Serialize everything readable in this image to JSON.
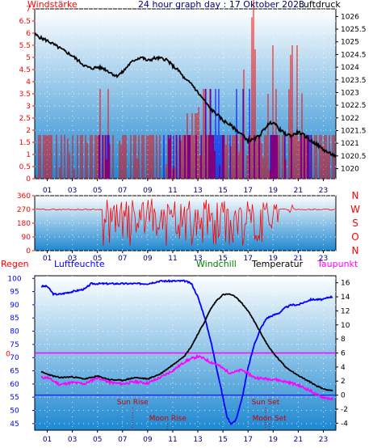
{
  "colors": {
    "background": "#ffffff",
    "plot_top": "#ffffff",
    "plot_bottom": "#1e88d0",
    "wind_speed": "#ff0000",
    "wind_gust": "#0000ff",
    "pressure": "#000000",
    "direction": "#ff0000",
    "rain_axis": "#ff0000",
    "humidity": "#0000ff",
    "temperature": "#000000",
    "windchill": "#008000",
    "dewpoint": "#ff00ff",
    "sunline": "#cc0000"
  },
  "chart_data": [
    {
      "type": "line",
      "title": "24 hour graph day : 17 Oktober 2023",
      "left_axis_label": "Windstärke",
      "right_axis_label": "Luftdruck",
      "x_ticks": [
        "01",
        "03",
        "05",
        "07",
        "09",
        "11",
        "13",
        "15",
        "17",
        "19",
        "21",
        "23"
      ],
      "left_ticks": [
        "7",
        "6.5",
        "6",
        "5.5",
        "5",
        "4.5",
        "4",
        "3.5",
        "3",
        "2.5",
        "2",
        "1.5",
        "1",
        "0.5",
        "0"
      ],
      "right_ticks": [
        "1026",
        "1025.5",
        "1025",
        "1024.5",
        "1024",
        "1023.5",
        "1023",
        "1022.5",
        "1022",
        "1021.5",
        "1021",
        "1020.5",
        "1020"
      ],
      "x_range": [
        0,
        24
      ],
      "left_range": [
        0,
        7
      ],
      "right_range": [
        1019.6,
        1026.3
      ],
      "pressure": {
        "x": [
          0,
          0.5,
          1,
          1.5,
          2,
          2.5,
          3,
          3.5,
          4,
          4.5,
          5,
          5.5,
          6,
          6.5,
          7,
          7.5,
          8,
          8.5,
          9,
          9.5,
          10,
          10.5,
          11,
          11.5,
          12,
          12.5,
          13,
          13.5,
          14,
          14.5,
          15,
          15.5,
          16,
          16.5,
          17,
          17.5,
          18,
          18.5,
          19,
          19.5,
          20,
          20.5,
          21,
          21.5,
          22,
          22.5,
          23,
          23.5,
          24
        ],
        "y": [
          1025.3,
          1025.15,
          1025.05,
          1024.9,
          1024.75,
          1024.6,
          1024.45,
          1024.25,
          1024.05,
          1023.95,
          1024.0,
          1023.95,
          1023.8,
          1023.65,
          1023.8,
          1024.1,
          1024.3,
          1024.4,
          1024.25,
          1024.35,
          1024.35,
          1024.3,
          1024.05,
          1023.85,
          1023.5,
          1023.35,
          1023.0,
          1022.7,
          1022.35,
          1022.15,
          1021.9,
          1021.75,
          1021.55,
          1021.35,
          1021.1,
          1021.15,
          1021.35,
          1021.7,
          1021.85,
          1021.55,
          1021.35,
          1021.3,
          1021.45,
          1021.3,
          1021.1,
          1020.95,
          1020.75,
          1020.6,
          1020.5
        ]
      },
      "wind_speed_max_by_hour": [
        1.8,
        1.8,
        1.8,
        1.8,
        1.8,
        3.7,
        1.8,
        1.8,
        1.8,
        1.8,
        1.8,
        1.8,
        2.7,
        3.7,
        3.7,
        3.7,
        5.5,
        7.4,
        5.5,
        3.7,
        5.5,
        3.7,
        1.8,
        1.8
      ],
      "wind_gust_max_by_hour": [
        0,
        0,
        0,
        0,
        0,
        1.8,
        0,
        0,
        0,
        0,
        1.8,
        1.8,
        1.8,
        3.7,
        3.7,
        3.7,
        3.7,
        3.7,
        1.8,
        1.8,
        1.8,
        1.8,
        0,
        0
      ]
    },
    {
      "type": "scatter",
      "left_ticks": [
        "360",
        "270",
        "180",
        "90",
        "0"
      ],
      "right_labels": [
        "N",
        "W",
        "S",
        "O",
        "N"
      ],
      "x_range": [
        0,
        24
      ],
      "y_range": [
        0,
        360
      ],
      "calm_direction": 270,
      "variable_from_hour": 5.3,
      "variable_to_hour": 19.5,
      "variable_band": [
        30,
        345
      ]
    },
    {
      "type": "line",
      "labels": [
        "Regen",
        "Luftfeuchte",
        "Windchill",
        "Temperatur",
        "Taupunkt"
      ],
      "left_ticks": [
        "100",
        "95",
        "90",
        "85",
        "80",
        "75",
        "70",
        "65",
        "60",
        "55",
        "50",
        "45"
      ],
      "right_ticks": [
        "16",
        "14",
        "12",
        "10",
        "8",
        "6",
        "4",
        "2",
        "0",
        "-2",
        "-4"
      ],
      "rain_tick": "0",
      "x_range": [
        0,
        24
      ],
      "humidity_range": [
        42.5,
        101
      ],
      "temperature_range": [
        -5,
        17
      ],
      "annotations": [
        {
          "label": "Sun Rise",
          "hour": 7.8
        },
        {
          "label": "Sun Set",
          "hour": 18.4
        },
        {
          "label": "Moon Rise",
          "hour": 10.6
        },
        {
          "label": "Moon Set",
          "hour": 18.7
        }
      ],
      "humidity": {
        "x": [
          0,
          0.5,
          1,
          1.5,
          2,
          3,
          4,
          4.5,
          5,
          6,
          7,
          8,
          9,
          10,
          11,
          12,
          12.5,
          13,
          13.5,
          14,
          14.5,
          15,
          15.3,
          15.6,
          16,
          16.5,
          17,
          17.5,
          18,
          18.5,
          19,
          19.5,
          20,
          20.5,
          21,
          21.5,
          22,
          22.5,
          23,
          23.5,
          24
        ],
        "y": [
          98,
          97,
          97,
          94,
          94,
          95,
          96,
          98,
          98,
          98,
          98,
          98,
          98,
          99,
          99,
          99,
          98,
          93,
          86,
          77,
          66,
          55,
          48,
          45,
          46,
          54,
          66,
          75,
          81,
          85,
          86,
          87,
          89,
          90,
          90,
          91,
          92,
          92,
          92,
          93,
          93
        ]
      },
      "temperature": {
        "x": [
          0,
          0.5,
          1,
          1.5,
          2,
          3,
          4,
          5,
          6,
          7,
          8,
          9,
          10,
          11,
          12,
          12.5,
          13,
          13.5,
          14,
          14.5,
          15,
          15.5,
          16,
          16.5,
          17,
          17.5,
          18,
          18.5,
          19,
          19.5,
          20,
          20.5,
          21,
          21.5,
          22,
          22.5,
          23,
          23.5,
          24
        ],
        "y": [
          3.8,
          3.3,
          3.0,
          2.7,
          2.5,
          2.6,
          2.3,
          2.7,
          2.2,
          2.1,
          2.5,
          2.3,
          3.0,
          4.3,
          5.7,
          7.0,
          8.7,
          10.3,
          12.2,
          13.5,
          14.3,
          14.4,
          14.0,
          13.1,
          12.0,
          10.5,
          8.9,
          7.3,
          6.0,
          5.0,
          4.0,
          3.4,
          2.8,
          2.3,
          1.8,
          1.3,
          0.9,
          0.7,
          0.6
        ]
      },
      "dewpoint": {
        "x": [
          0,
          0.5,
          1,
          1.5,
          2,
          3,
          4,
          5,
          6,
          7,
          8,
          9,
          10,
          11,
          12,
          12.5,
          13,
          13.5,
          14,
          14.5,
          15,
          15.5,
          16,
          16.5,
          17,
          17.5,
          18,
          18.5,
          19,
          19.5,
          20,
          20.5,
          21,
          21.5,
          22,
          22.5,
          23,
          23.5,
          24
        ],
        "y": [
          3.0,
          2.5,
          2.5,
          2.0,
          1.5,
          1.8,
          1.6,
          2.5,
          1.8,
          1.6,
          1.9,
          1.7,
          2.5,
          3.5,
          4.8,
          5.2,
          5.5,
          5.2,
          4.7,
          4.4,
          3.8,
          3.2,
          3.3,
          3.6,
          3.1,
          2.5,
          2.4,
          2.3,
          2.3,
          2.1,
          1.9,
          1.7,
          1.4,
          1.0,
          0.6,
          0.0,
          -0.3,
          -0.5,
          -0.7
        ]
      }
    }
  ]
}
